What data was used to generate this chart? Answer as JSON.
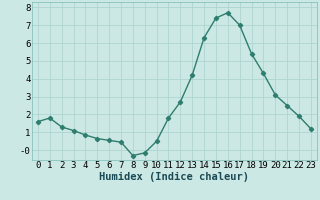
{
  "xlabel": "Humidex (Indice chaleur)",
  "x": [
    0,
    1,
    2,
    3,
    4,
    5,
    6,
    7,
    8,
    9,
    10,
    11,
    12,
    13,
    14,
    15,
    16,
    17,
    18,
    19,
    20,
    21,
    22,
    23
  ],
  "y": [
    1.6,
    1.8,
    1.3,
    1.1,
    0.85,
    0.65,
    0.55,
    0.45,
    -0.3,
    -0.15,
    0.5,
    1.8,
    2.7,
    4.2,
    6.3,
    7.4,
    7.7,
    7.0,
    5.4,
    4.3,
    3.1,
    2.5,
    1.9,
    1.2
  ],
  "line_color": "#2e7d6e",
  "marker": "D",
  "marker_size": 2.2,
  "line_width": 1.0,
  "background_color": "#cce8e4",
  "grid_color": "#afd4cf",
  "ylim": [
    -0.55,
    8.3
  ],
  "xlim": [
    -0.5,
    23.5
  ],
  "yticks": [
    0,
    1,
    2,
    3,
    4,
    5,
    6,
    7,
    8
  ],
  "ytick_labels": [
    "-0",
    "1",
    "2",
    "3",
    "4",
    "5",
    "6",
    "7",
    "8"
  ],
  "xticks": [
    0,
    1,
    2,
    3,
    4,
    5,
    6,
    7,
    8,
    9,
    10,
    11,
    12,
    13,
    14,
    15,
    16,
    17,
    18,
    19,
    20,
    21,
    22,
    23
  ],
  "xlabel_fontsize": 7.5,
  "tick_fontsize": 6.5
}
